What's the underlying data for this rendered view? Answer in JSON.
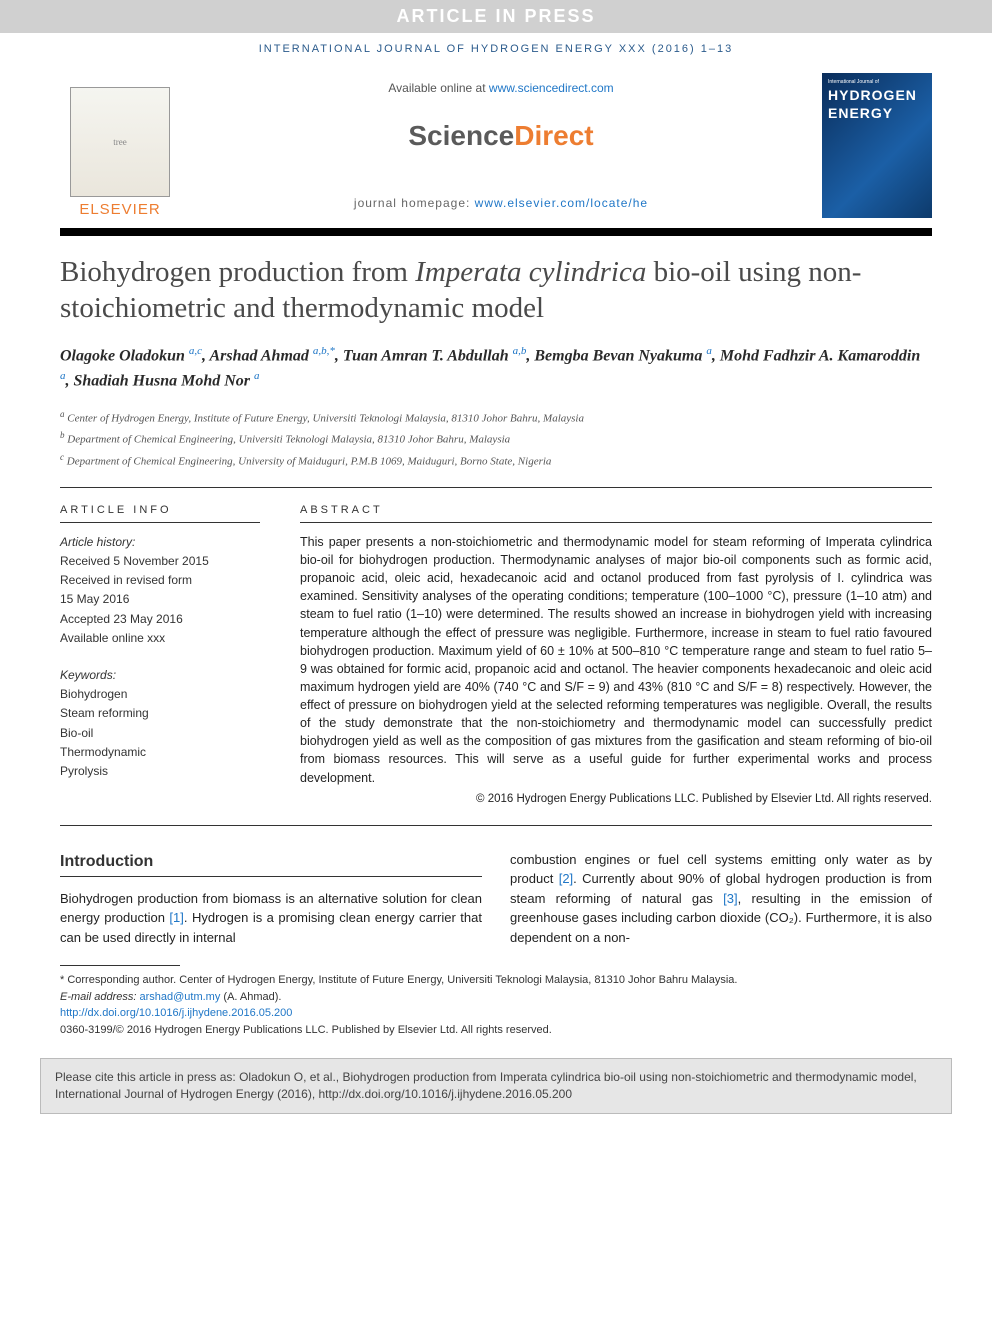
{
  "banner": {
    "text": "ARTICLE IN PRESS"
  },
  "journal_ref": "INTERNATIONAL JOURNAL OF HYDROGEN ENERGY XXX (2016) 1–13",
  "header": {
    "available_prefix": "Available online at ",
    "available_link": "www.sciencedirect.com",
    "sd_brand_left": "Science",
    "sd_brand_right": "Direct",
    "homepage_prefix": "journal homepage: ",
    "homepage_link": "www.elsevier.com/locate/he",
    "elsevier": "ELSEVIER",
    "cover_small": "International Journal of",
    "cover_big1": "HYDROGEN",
    "cover_big2": "ENERGY"
  },
  "title": {
    "part1": "Biohydrogen production from ",
    "italic": "Imperata cylindrica",
    "part2": " bio-oil using non-stoichiometric and thermodynamic model"
  },
  "authors_html": "Olagoke Oladokun <sup class='sup'>a,c</sup>, Arshad Ahmad <sup class='sup'>a,b,*</sup>, Tuan Amran T. Abdullah <sup class='sup'>a,b</sup>, Bemgba Bevan Nyakuma <sup class='sup'>a</sup>, Mohd Fadhzir A. Kamaroddin <sup class='sup'>a</sup>, Shadiah Husna Mohd Nor <sup class='sup'>a</sup>",
  "affiliations": {
    "a": "Center of Hydrogen Energy, Institute of Future Energy, Universiti Teknologi Malaysia, 81310 Johor Bahru, Malaysia",
    "b": "Department of Chemical Engineering, Universiti Teknologi Malaysia, 81310 Johor Bahru, Malaysia",
    "c": "Department of Chemical Engineering, University of Maiduguri, P.M.B 1069, Maiduguri, Borno State, Nigeria"
  },
  "article_info": {
    "heading": "ARTICLE INFO",
    "history_label": "Article history:",
    "received": "Received 5 November 2015",
    "revised1": "Received in revised form",
    "revised2": "15 May 2016",
    "accepted": "Accepted 23 May 2016",
    "online": "Available online xxx",
    "keywords_label": "Keywords:",
    "keywords": [
      "Biohydrogen",
      "Steam reforming",
      "Bio-oil",
      "Thermodynamic",
      "Pyrolysis"
    ]
  },
  "abstract": {
    "heading": "ABSTRACT",
    "text": "This paper presents a non-stoichiometric and thermodynamic model for steam reforming of Imperata cylindrica bio-oil for biohydrogen production. Thermodynamic analyses of major bio-oil components such as formic acid, propanoic acid, oleic acid, hexadecanoic acid and octanol produced from fast pyrolysis of I. cylindrica was examined. Sensitivity analyses of the operating conditions; temperature (100–1000 °C), pressure (1–10 atm) and steam to fuel ratio (1–10) were determined. The results showed an increase in biohydrogen yield with increasing temperature although the effect of pressure was negligible. Furthermore, increase in steam to fuel ratio favoured biohydrogen production. Maximum yield of 60 ± 10% at 500–810 °C temperature range and steam to fuel ratio 5–9 was obtained for formic acid, propanoic acid and octanol. The heavier components hexadecanoic and oleic acid maximum hydrogen yield are 40% (740 °C and S/F = 9) and 43% (810 °C and S/F = 8) respectively. However, the effect of pressure on biohydrogen yield at the selected reforming temperatures was negligible. Overall, the results of the study demonstrate that the non-stoichiometry and thermodynamic model can successfully predict biohydrogen yield as well as the composition of gas mixtures from the gasification and steam reforming of bio-oil from biomass resources. This will serve as a useful guide for further experimental works and process development.",
    "copyright": "© 2016 Hydrogen Energy Publications LLC. Published by Elsevier Ltd. All rights reserved."
  },
  "body": {
    "intro_heading": "Introduction",
    "col1": "Biohydrogen production from biomass is an alternative solution for clean energy production [1]. Hydrogen is a promising clean energy carrier that can be used directly in internal",
    "col2": "combustion engines or fuel cell systems emitting only water as by product [2]. Currently about 90% of global hydrogen production is from steam reforming of natural gas [3], resulting in the emission of greenhouse gases including carbon dioxide (CO₂). Furthermore, it is also dependent on a non-"
  },
  "footnotes": {
    "corresponding": "* Corresponding author. Center of Hydrogen Energy, Institute of Future Energy, Universiti Teknologi Malaysia, 81310 Johor Bahru Malaysia.",
    "email_label": "E-mail address: ",
    "email": "arshad@utm.my",
    "email_suffix": " (A. Ahmad).",
    "doi": "http://dx.doi.org/10.1016/j.ijhydene.2016.05.200",
    "issn_line": "0360-3199/© 2016 Hydrogen Energy Publications LLC. Published by Elsevier Ltd. All rights reserved."
  },
  "cite_box": "Please cite this article in press as: Oladokun O, et al., Biohydrogen production from Imperata cylindrica bio-oil using non-stoichiometric and thermodynamic model, International Journal of Hydrogen Energy (2016), http://dx.doi.org/10.1016/j.ijhydene.2016.05.200",
  "colors": {
    "banner_bg": "#d0d0d0",
    "link": "#2077c7",
    "orange": "#ed7d31",
    "cover_bg": "#0a2d5a"
  }
}
